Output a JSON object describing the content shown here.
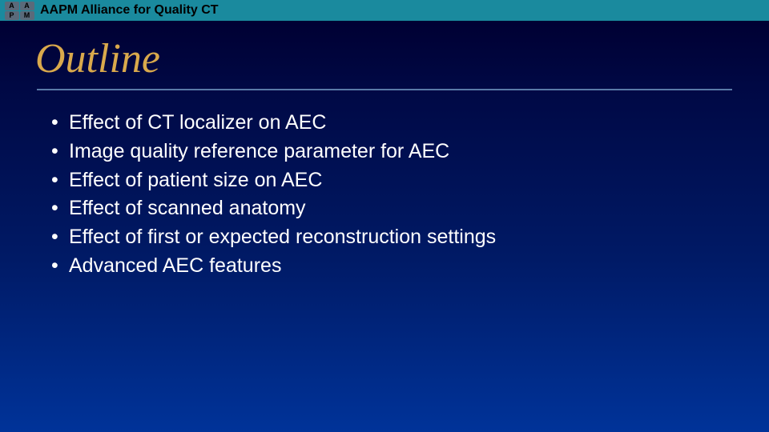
{
  "header": {
    "org_text": "AAPM Alliance for Quality CT",
    "bar_color": "#1a8a9e",
    "text_color": "#000000",
    "logo_cells": [
      "A",
      "A",
      "P",
      "M"
    ]
  },
  "title": {
    "text": "Outline",
    "color": "#d9a94c",
    "fontsize": 52,
    "italic": true,
    "rule_color": "#5a7aa8"
  },
  "bullets": {
    "color": "#ffffff",
    "fontsize": 25,
    "items": [
      "Effect of CT localizer on AEC",
      "Image quality reference parameter for AEC",
      "Effect of patient size on AEC",
      "Effect of scanned anatomy",
      "Effect of first or expected reconstruction settings",
      "Advanced AEC features"
    ]
  },
  "background": {
    "gradient_top": "#000033",
    "gradient_bottom": "#003399"
  }
}
